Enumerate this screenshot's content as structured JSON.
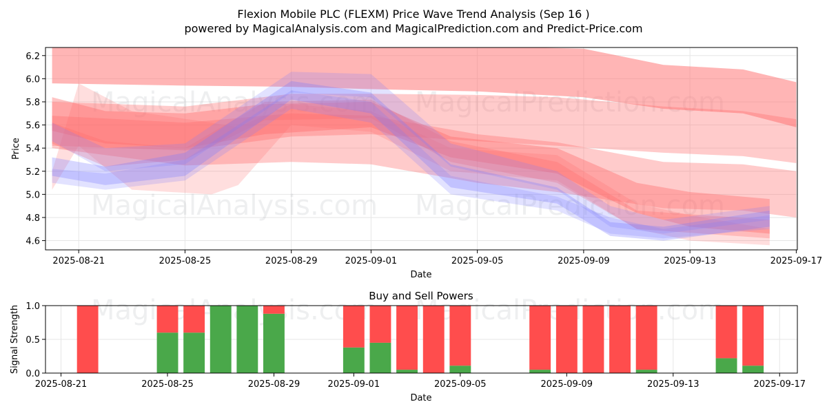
{
  "title_line1": "Flexion Mobile PLC (FLEXM) Price Wave Trend Analysis (Sep 16 )",
  "title_line2": "powered by MagicalAnalysis.com and MagicalPrediction.com and Predict-Price.com",
  "watermarks": [
    "MagicalAnalysis.com",
    "MagicalPrediction.com"
  ],
  "colors": {
    "sell": "#ff4d4d",
    "buy": "#4aa84a",
    "band_red": "#ff6b6b",
    "band_blue": "#7b7bff",
    "grid": "#e6e6e6"
  },
  "chart_data": [
    {
      "type": "area",
      "xlabel": "Date",
      "ylabel": "Price",
      "x_ticks": [
        "2025-08-21",
        "2025-08-25",
        "2025-08-29",
        "2025-09-01",
        "2025-09-05",
        "2025-09-09",
        "2025-09-13",
        "2025-09-17"
      ],
      "y_ticks": [
        "4.6",
        "4.8",
        "5.0",
        "5.2",
        "5.4",
        "5.6",
        "5.8",
        "6.0",
        "6.2"
      ],
      "ylim": [
        4.52,
        6.27
      ],
      "xlim": [
        "2025-08-19T18:00",
        "2025-09-17T01:00"
      ],
      "grid": true,
      "series": [
        {
          "color": "red",
          "opacity": 0.5,
          "x": [
            "2025-08-20",
            "2025-08-25",
            "2025-08-29",
            "2025-09-01",
            "2025-09-05",
            "2025-09-09",
            "2025-09-12",
            "2025-09-15",
            "2025-09-17"
          ],
          "upper": [
            6.28,
            6.28,
            6.28,
            6.28,
            6.28,
            6.26,
            6.12,
            6.08,
            5.97
          ],
          "lower": [
            5.96,
            5.94,
            5.93,
            5.91,
            5.89,
            5.84,
            5.74,
            5.7,
            5.58
          ]
        },
        {
          "color": "red",
          "opacity": 0.35,
          "x": [
            "2025-08-20",
            "2025-08-25",
            "2025-08-29",
            "2025-09-01",
            "2025-09-05",
            "2025-09-08",
            "2025-09-12",
            "2025-09-15",
            "2025-09-17"
          ],
          "upper": [
            5.8,
            5.76,
            5.87,
            5.87,
            5.86,
            5.84,
            5.76,
            5.72,
            5.65
          ],
          "lower": [
            5.42,
            5.38,
            5.5,
            5.52,
            5.46,
            5.42,
            5.36,
            5.33,
            5.27
          ]
        },
        {
          "color": "red",
          "opacity": 0.35,
          "x": [
            "2025-08-20",
            "2025-08-25",
            "2025-08-29",
            "2025-09-01",
            "2025-09-05",
            "2025-09-08",
            "2025-09-12",
            "2025-09-15",
            "2025-09-17"
          ],
          "upper": [
            5.68,
            5.62,
            5.7,
            5.68,
            5.52,
            5.45,
            5.28,
            5.26,
            5.2
          ],
          "lower": [
            5.4,
            5.25,
            5.28,
            5.26,
            5.1,
            5.02,
            4.88,
            4.86,
            4.8
          ]
        },
        {
          "color": "red",
          "opacity": 0.4,
          "x": [
            "2025-08-20",
            "2025-08-22",
            "2025-08-25",
            "2025-08-28",
            "2025-09-01",
            "2025-09-04",
            "2025-09-08",
            "2025-09-11",
            "2025-09-13",
            "2025-09-16"
          ],
          "upper": [
            5.84,
            5.72,
            5.7,
            5.78,
            5.8,
            5.5,
            5.4,
            5.1,
            5.02,
            4.96
          ],
          "lower": [
            5.55,
            5.44,
            5.4,
            5.52,
            5.58,
            5.32,
            5.18,
            4.84,
            4.72,
            4.66
          ]
        },
        {
          "color": "red",
          "opacity": 0.22,
          "x": [
            "2025-08-20",
            "2025-08-21",
            "2025-08-23",
            "2025-08-26",
            "2025-08-27",
            "2025-08-29",
            "2025-09-01",
            "2025-09-04",
            "2025-09-08",
            "2025-09-11",
            "2025-09-13",
            "2025-09-16"
          ],
          "upper": [
            5.2,
            5.96,
            5.72,
            5.62,
            5.58,
            5.78,
            5.72,
            5.4,
            5.34,
            4.92,
            4.82,
            4.7
          ],
          "lower": [
            5.04,
            5.42,
            5.04,
            5.0,
            5.08,
            5.6,
            5.54,
            5.2,
            5.12,
            4.7,
            4.6,
            4.56
          ]
        },
        {
          "color": "red",
          "opacity": 0.3,
          "x": [
            "2025-08-20",
            "2025-08-22",
            "2025-08-25",
            "2025-08-28",
            "2025-09-01",
            "2025-09-04",
            "2025-09-08",
            "2025-09-11",
            "2025-09-16"
          ],
          "upper": [
            5.62,
            5.46,
            5.4,
            5.8,
            5.82,
            5.46,
            5.28,
            4.86,
            4.78
          ],
          "lower": [
            5.44,
            5.24,
            5.3,
            5.64,
            5.66,
            5.28,
            5.1,
            4.7,
            4.62
          ]
        },
        {
          "color": "blue",
          "opacity": 0.3,
          "x": [
            "2025-08-20",
            "2025-08-22",
            "2025-08-25",
            "2025-08-29",
            "2025-09-01",
            "2025-09-04",
            "2025-09-08",
            "2025-09-10",
            "2025-09-12",
            "2025-09-16"
          ],
          "upper": [
            5.32,
            5.24,
            5.36,
            5.98,
            5.88,
            5.26,
            5.06,
            4.76,
            4.72,
            4.86
          ],
          "lower": [
            5.16,
            5.08,
            5.16,
            5.82,
            5.7,
            5.06,
            4.92,
            4.64,
            4.6,
            4.72
          ]
        },
        {
          "color": "blue",
          "opacity": 0.22,
          "x": [
            "2025-08-20",
            "2025-08-22",
            "2025-08-25",
            "2025-08-29",
            "2025-09-01",
            "2025-09-04",
            "2025-09-08",
            "2025-09-10",
            "2025-09-12",
            "2025-09-16"
          ],
          "upper": [
            5.62,
            5.4,
            5.44,
            6.06,
            6.04,
            5.44,
            5.2,
            4.9,
            4.78,
            4.9
          ],
          "lower": [
            5.46,
            5.2,
            5.26,
            5.88,
            5.84,
            5.24,
            5.04,
            4.72,
            4.66,
            4.78
          ]
        },
        {
          "color": "blue",
          "opacity": 0.22,
          "x": [
            "2025-08-20",
            "2025-08-22",
            "2025-08-25",
            "2025-08-29",
            "2025-09-01",
            "2025-09-04",
            "2025-09-08",
            "2025-09-10",
            "2025-09-12",
            "2025-09-16"
          ],
          "upper": [
            5.22,
            5.18,
            5.3,
            5.9,
            5.8,
            5.16,
            4.98,
            4.8,
            4.7,
            4.82
          ],
          "lower": [
            5.1,
            5.04,
            5.12,
            5.74,
            5.62,
            5.0,
            4.86,
            4.66,
            4.62,
            4.7
          ]
        }
      ]
    },
    {
      "type": "bar",
      "title": "Buy and Sell Powers",
      "xlabel": "Date",
      "ylabel": "Signal Strength",
      "x_ticks": [
        "2025-08-21",
        "2025-08-25",
        "2025-08-29",
        "2025-09-01",
        "2025-09-05",
        "2025-09-09",
        "2025-09-13",
        "2025-09-17"
      ],
      "y_ticks": [
        "0.0",
        "0.5",
        "1.0"
      ],
      "ylim": [
        0,
        1
      ],
      "xlim": [
        "2025-08-20T10:00",
        "2025-09-17T16:00"
      ],
      "grid": true,
      "categories": [
        "2025-08-22",
        "2025-08-25",
        "2025-08-26",
        "2025-08-27",
        "2025-08-28",
        "2025-08-29",
        "2025-09-01",
        "2025-09-02",
        "2025-09-03",
        "2025-09-04",
        "2025-09-05",
        "2025-09-08",
        "2025-09-09",
        "2025-09-10",
        "2025-09-11",
        "2025-09-12",
        "2025-09-15",
        "2025-09-16"
      ],
      "series": [
        {
          "key": "buy",
          "values": [
            0.0,
            0.6,
            0.6,
            1.0,
            1.0,
            0.88,
            0.38,
            0.45,
            0.05,
            0.0,
            0.11,
            0.05,
            0.0,
            0.0,
            0.0,
            0.05,
            0.22,
            0.11
          ]
        },
        {
          "key": "sell",
          "values": [
            1.0,
            0.4,
            0.4,
            0.0,
            0.0,
            0.12,
            0.62,
            0.55,
            0.95,
            1.0,
            0.89,
            0.95,
            1.0,
            1.0,
            1.0,
            0.95,
            0.78,
            0.89
          ]
        }
      ]
    }
  ]
}
